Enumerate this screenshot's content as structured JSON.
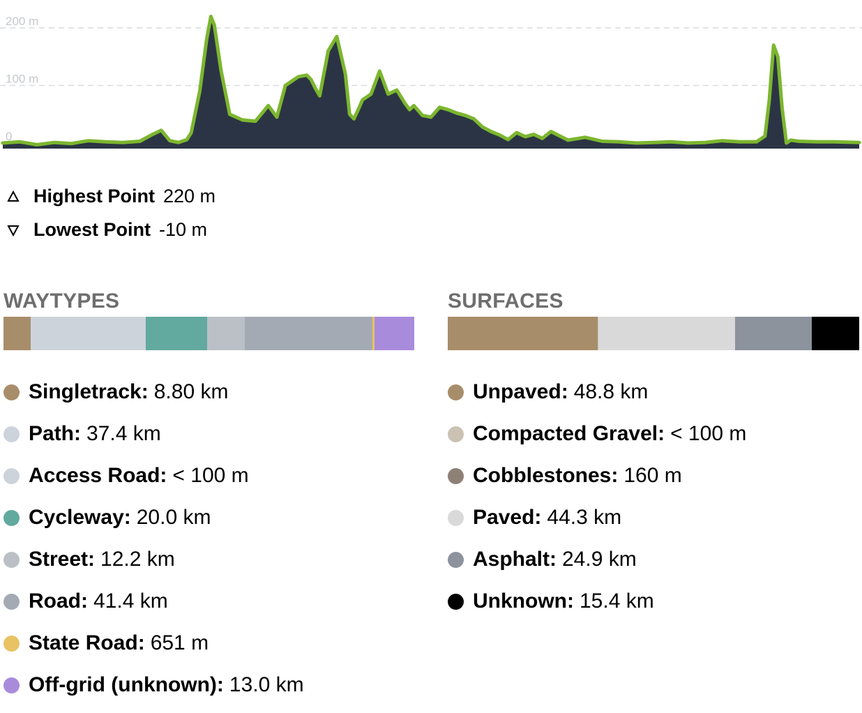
{
  "chart_data": {
    "type": "area",
    "title": "",
    "xlabel": "",
    "ylabel": "",
    "ylim": [
      -10,
      220
    ],
    "yticks": [
      {
        "value": 0,
        "label": "0"
      },
      {
        "value": 100,
        "label": "100 m"
      },
      {
        "value": 200,
        "label": "200 m"
      }
    ],
    "grid": true,
    "x_percent": [
      0,
      2,
      4,
      6,
      8,
      10,
      12,
      14,
      16,
      17.5,
      18.5,
      19.5,
      20.5,
      21.5,
      22,
      23,
      23.8,
      24.3,
      24.7,
      25.5,
      26.5,
      28,
      29.5,
      31,
      32,
      33,
      34.5,
      35.5,
      36,
      36.5,
      37,
      38,
      39,
      40,
      40.5,
      41,
      41.5,
      42,
      43,
      44,
      45,
      46,
      47,
      47.5,
      48,
      49,
      50,
      51,
      52,
      53,
      54,
      55,
      56,
      57,
      58,
      59,
      60,
      61,
      62,
      63,
      64,
      66,
      68,
      70,
      72,
      74,
      76,
      78,
      80,
      82,
      84,
      86,
      88,
      89,
      89.5,
      90,
      90.5,
      91,
      91.5,
      92,
      93,
      95,
      97,
      100
    ],
    "y_m": [
      0,
      2,
      -3,
      1,
      -1,
      4,
      2,
      1,
      3,
      15,
      22,
      4,
      1,
      6,
      18,
      90,
      180,
      220,
      205,
      125,
      50,
      40,
      38,
      65,
      45,
      100,
      115,
      118,
      110,
      95,
      82,
      160,
      185,
      120,
      50,
      42,
      58,
      75,
      85,
      125,
      85,
      92,
      68,
      58,
      65,
      48,
      45,
      62,
      58,
      52,
      48,
      42,
      28,
      20,
      14,
      6,
      18,
      11,
      15,
      8,
      20,
      5,
      10,
      3,
      2,
      0,
      1,
      2,
      0,
      1,
      4,
      2,
      2,
      12,
      75,
      170,
      150,
      60,
      0,
      5,
      3,
      2,
      2,
      1
    ],
    "line_color": "#7cb62f",
    "area_color": "#2b3444"
  },
  "stats": {
    "highest": {
      "label": "Highest Point",
      "value": "220 m",
      "icon": "triangle-up-icon"
    },
    "lowest": {
      "label": "Lowest Point",
      "value": "-10 m",
      "icon": "triangle-down-icon"
    }
  },
  "waytypes": {
    "title": "WAYTYPES",
    "items": [
      {
        "name": "Singletrack:",
        "value": "8.80 km",
        "color": "#a88d6a",
        "km": 8.8
      },
      {
        "name": "Path:",
        "value": "37.4 km",
        "color": "#cdd3db",
        "km": 37.4
      },
      {
        "name": "Access Road:",
        "value": "< 100 m",
        "color": "#cdd3db",
        "km": 0.05
      },
      {
        "name": "Cycleway:",
        "value": "20.0 km",
        "color": "#62a99f",
        "km": 20.0
      },
      {
        "name": "Street:",
        "value": "12.2 km",
        "color": "#bbc0c6",
        "km": 12.2
      },
      {
        "name": "Road:",
        "value": "41.4 km",
        "color": "#a4aab3",
        "km": 41.4
      },
      {
        "name": "State Road:",
        "value": "651 m",
        "color": "#e8c263",
        "km": 0.651
      },
      {
        "name": "Off-grid (unknown):",
        "value": "13.0 km",
        "color": "#a98bdc",
        "km": 13.0
      }
    ]
  },
  "surfaces": {
    "title": "SURFACES",
    "items": [
      {
        "name": "Unpaved:",
        "value": "48.8 km",
        "color": "#a88d6a",
        "km": 48.8
      },
      {
        "name": "Compacted Gravel:",
        "value": "< 100 m",
        "color": "#cbc2b4",
        "km": 0.05
      },
      {
        "name": "Cobblestones:",
        "value": "160 m",
        "color": "#8d8176",
        "km": 0.16
      },
      {
        "name": "Paved:",
        "value": "44.3 km",
        "color": "#d9d9d9",
        "km": 44.3
      },
      {
        "name": "Asphalt:",
        "value": "24.9 km",
        "color": "#8c939d",
        "km": 24.9
      },
      {
        "name": "Unknown:",
        "value": "15.4 km",
        "color": "#000000",
        "km": 15.4
      }
    ]
  }
}
